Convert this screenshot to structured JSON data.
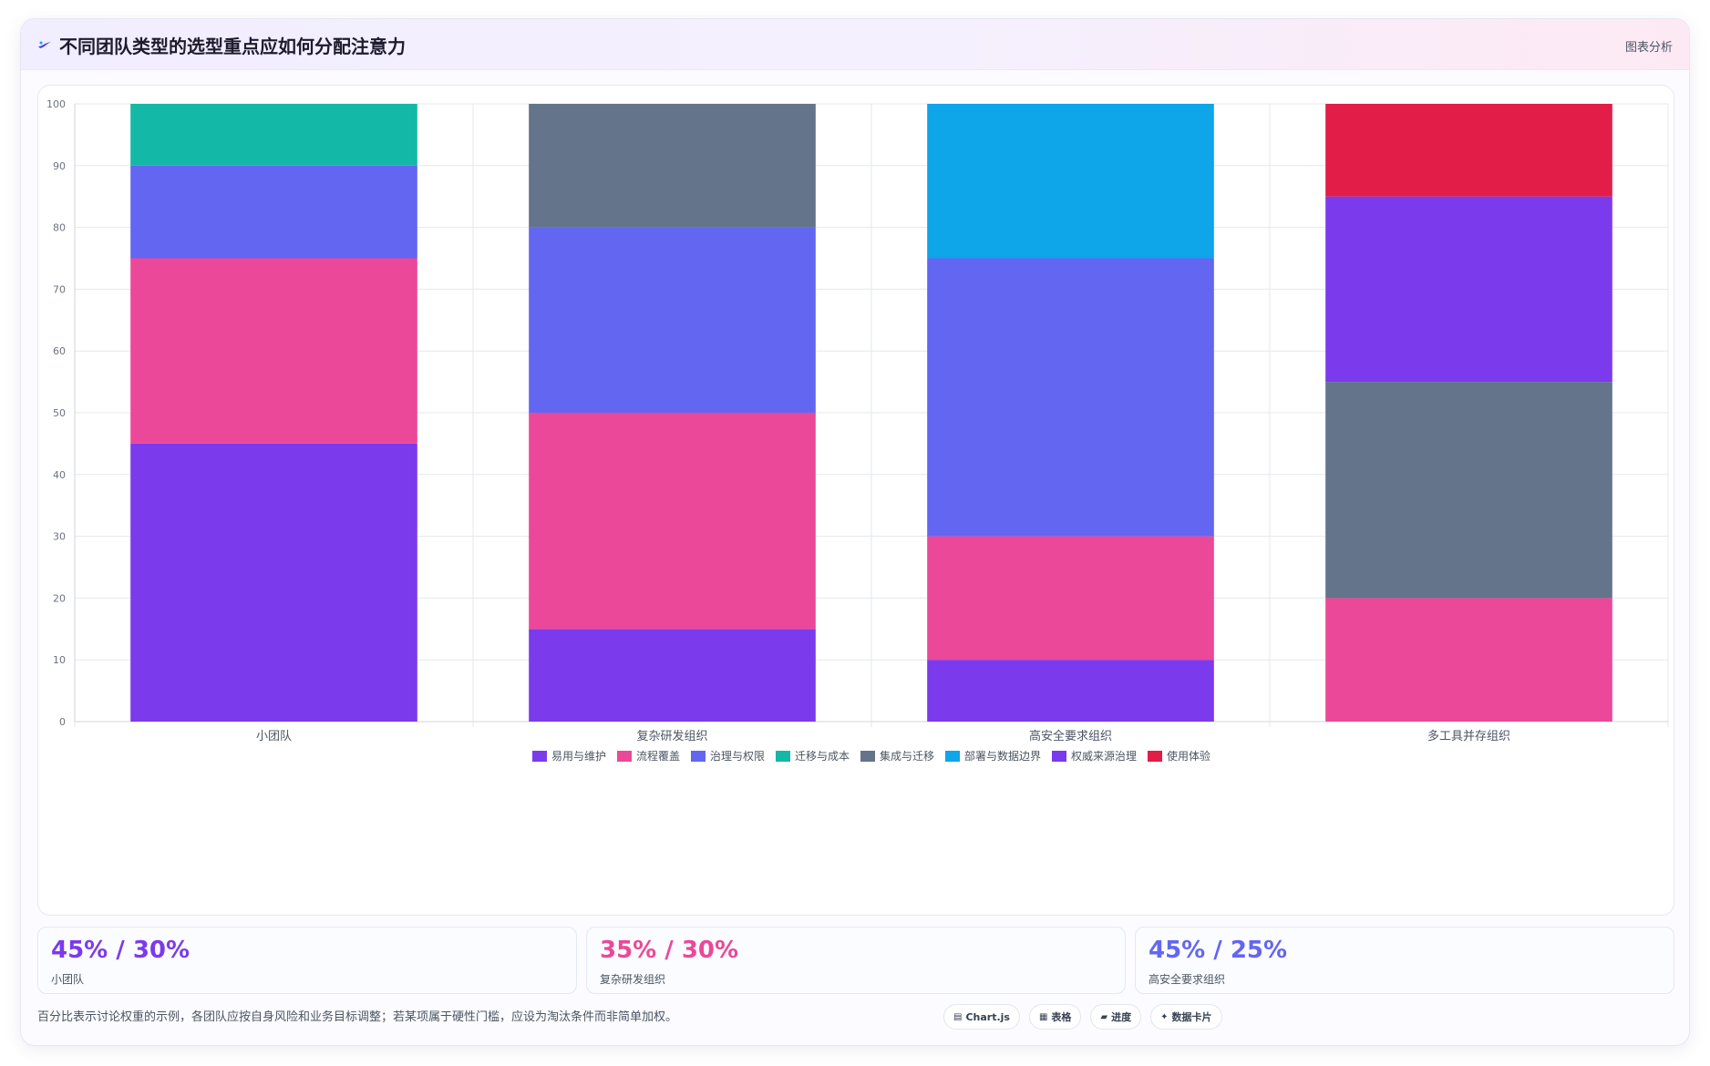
{
  "header": {
    "title": "不同团队类型的选型重点应如何分配注意力",
    "tag": "图表分析",
    "title_icon": "sparkle-icon"
  },
  "chart_data": {
    "type": "bar",
    "stacked": true,
    "title": "",
    "xlabel": "",
    "ylabel": "",
    "ylim": [
      0,
      100
    ],
    "yticks": [
      0,
      10,
      20,
      30,
      40,
      50,
      60,
      70,
      80,
      90,
      100
    ],
    "grid": true,
    "legend_position": "bottom",
    "categories": [
      "小团队",
      "复杂研发组织",
      "高安全要求组织",
      "多工具并存组织"
    ],
    "series": [
      {
        "name": "易用与维护",
        "color": "#7c3aed",
        "values": [
          45,
          15,
          10,
          0
        ]
      },
      {
        "name": "流程覆盖",
        "color": "#ec4899",
        "values": [
          30,
          35,
          20,
          20
        ]
      },
      {
        "name": "治理与权限",
        "color": "#6366f1",
        "values": [
          15,
          30,
          45,
          0
        ]
      },
      {
        "name": "迁移与成本",
        "color": "#14b8a6",
        "values": [
          10,
          0,
          0,
          0
        ]
      },
      {
        "name": "集成与迁移",
        "color": "#64748b",
        "values": [
          0,
          20,
          0,
          35
        ]
      },
      {
        "name": "部署与数据边界",
        "color": "#0ea5e9",
        "values": [
          0,
          0,
          25,
          0
        ]
      },
      {
        "name": "权威来源治理",
        "color": "#7c3aed",
        "values": [
          0,
          0,
          0,
          30
        ]
      },
      {
        "name": "使用体验",
        "color": "#e11d48",
        "values": [
          0,
          0,
          0,
          15
        ]
      }
    ]
  },
  "stats": [
    {
      "value": "45% / 30%",
      "label": "小团队",
      "color": "#7c3aed"
    },
    {
      "value": "35% / 30%",
      "label": "复杂研发组织",
      "color": "#ec4899"
    },
    {
      "value": "45% / 25%",
      "label": "高安全要求组织",
      "color": "#6366f1"
    }
  ],
  "footnote": "百分比表示讨论权重的示例，各团队应按自身风险和业务目标调整；若某项属于硬性门槛，应设为淘汰条件而非简单加权。",
  "chips": [
    {
      "icon": "▤",
      "label": "Chart.js",
      "icon_name": "chart-icon"
    },
    {
      "icon": "▦",
      "label": "表格",
      "icon_name": "table-icon"
    },
    {
      "icon": "▰",
      "label": "进度",
      "icon_name": "progress-icon"
    },
    {
      "icon": "✦",
      "label": "数据卡片",
      "icon_name": "card-icon"
    }
  ]
}
